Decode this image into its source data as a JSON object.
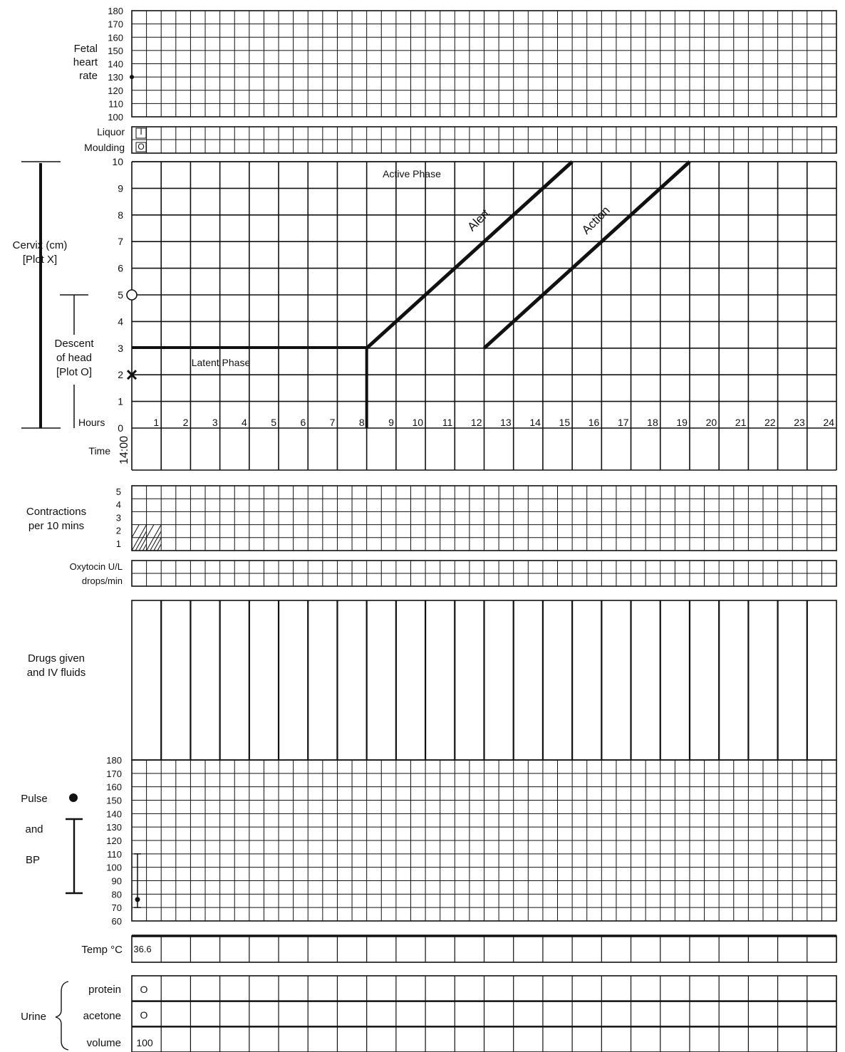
{
  "fhr": {
    "label": [
      "Fetal",
      "heart",
      "rate"
    ],
    "ticks": [
      "180",
      "170",
      "160",
      "150",
      "140",
      "130",
      "120",
      "110",
      "100"
    ],
    "plotted": [
      {
        "hour": 0,
        "bpm": 130
      }
    ]
  },
  "liquor": {
    "label": "Liquor",
    "value": "I"
  },
  "moulding": {
    "label": "Moulding",
    "value": "O"
  },
  "cervix": {
    "label": [
      "Cervix (cm)",
      "[Plot X]"
    ],
    "ticks": [
      "10",
      "9",
      "8",
      "7",
      "6",
      "5",
      "4",
      "3",
      "2",
      "1",
      "0"
    ],
    "hours_label": "Hours",
    "hours": [
      "1",
      "2",
      "3",
      "4",
      "5",
      "6",
      "7",
      "8",
      "9",
      "10",
      "11",
      "12",
      "13",
      "14",
      "15",
      "16",
      "17",
      "18",
      "19",
      "20",
      "21",
      "22",
      "23",
      "24"
    ],
    "active_phase_label": "Active Phase",
    "latent_phase_label": "Latent Phase",
    "alert_label": "Alert",
    "action_label": "Action"
  },
  "descent": {
    "label": [
      "Descent",
      "of head",
      "[Plot O]"
    ]
  },
  "time": {
    "label": "Time",
    "start": "14:00"
  },
  "contractions": {
    "label": [
      "Contractions",
      "per 10 mins"
    ],
    "ticks": [
      "5",
      "4",
      "3",
      "2",
      "1"
    ],
    "recorded": [
      {
        "half_hour": 0,
        "count": 2
      },
      {
        "half_hour": 1,
        "count": 2
      }
    ]
  },
  "oxytocin": {
    "label": [
      "Oxytocin U/L",
      "drops/min"
    ]
  },
  "drugs": {
    "label": [
      "Drugs given",
      "and IV fluids"
    ]
  },
  "pulse_bp": {
    "pulse_label": "Pulse",
    "and_label": "and",
    "bp_label": "BP",
    "ticks": [
      "180",
      "170",
      "160",
      "150",
      "140",
      "130",
      "120",
      "110",
      "100",
      "90",
      "80",
      "70",
      "60"
    ],
    "bp_systolic": 110,
    "bp_diastolic": 70,
    "pulse": 76
  },
  "temp": {
    "label": "Temp °C",
    "value": "36.6"
  },
  "urine": {
    "label": "Urine",
    "protein_label": "protein",
    "acetone_label": "acetone",
    "volume_label": "volume",
    "protein": "O",
    "acetone": "O",
    "volume": "100"
  },
  "chart_data": {
    "type": "line",
    "title": "",
    "xlabel": "Hours",
    "ylabel": "Cervix (cm)",
    "x": [
      0,
      24
    ],
    "xlim": [
      0,
      24
    ],
    "ylim": [
      0,
      10
    ],
    "grid": true,
    "series": [
      {
        "name": "Alert",
        "x": [
          8,
          15
        ],
        "y": [
          3,
          10
        ]
      },
      {
        "name": "Action",
        "x": [
          12,
          19
        ],
        "y": [
          3,
          10
        ]
      }
    ],
    "observations": {
      "cervix_X": [
        {
          "hour": 0,
          "cm": 2
        }
      ],
      "descent_O": [
        {
          "hour": 0,
          "value": 5
        }
      ]
    }
  }
}
